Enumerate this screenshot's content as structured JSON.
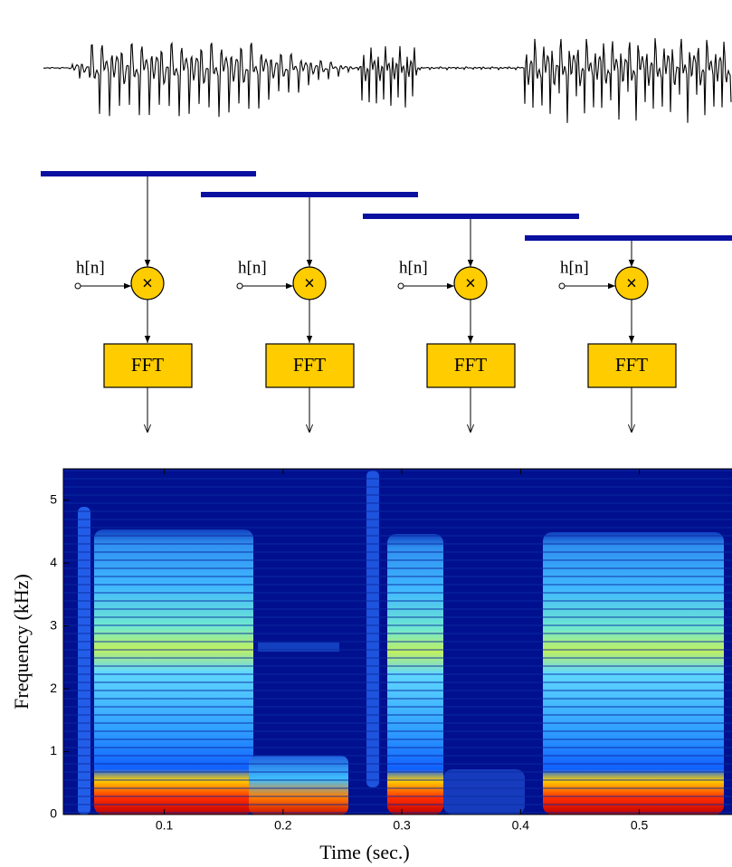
{
  "diagram": {
    "stages": [
      {
        "input": "h[n]",
        "operator": "×",
        "block": "FFT"
      },
      {
        "input": "h[n]",
        "operator": "×",
        "block": "FFT"
      },
      {
        "input": "h[n]",
        "operator": "×",
        "block": "FFT"
      },
      {
        "input": "h[n]",
        "operator": "×",
        "block": "FFT"
      }
    ]
  },
  "chart_data": {
    "type": "spectrogram",
    "x_label": "Time (sec.)",
    "y_label": "Frequency (kHz)",
    "xlim": [
      0.015,
      0.578
    ],
    "ylim": [
      0,
      5.5
    ],
    "xticks": [
      0.1,
      0.2,
      0.3,
      0.4,
      0.5
    ],
    "yticks": [
      0,
      1,
      2,
      3,
      4,
      5
    ]
  }
}
